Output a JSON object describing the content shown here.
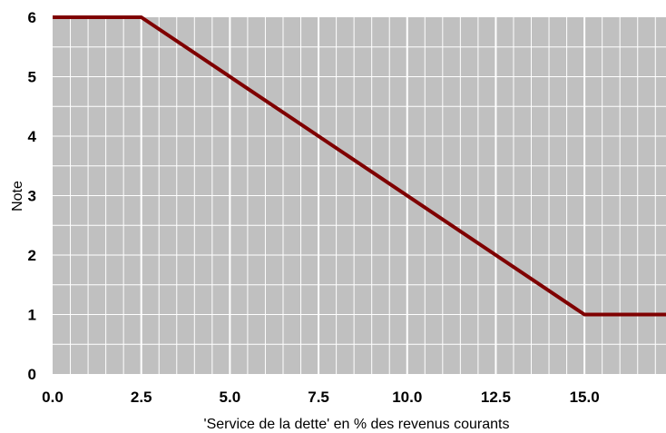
{
  "chart_data": {
    "type": "line",
    "title": "",
    "xlabel": "'Service de la dette' en % des revenus courants",
    "ylabel": "Note",
    "xlim": [
      0,
      17.3
    ],
    "ylim": [
      0,
      6
    ],
    "x_ticks": [
      0,
      2.5,
      5,
      7.5,
      10,
      12.5,
      15
    ],
    "x_tick_labels": [
      "0.0",
      "2.5",
      "5.0",
      "7.5",
      "10.0",
      "12.5",
      "15.0"
    ],
    "y_ticks": [
      0,
      1,
      2,
      3,
      4,
      5,
      6
    ],
    "y_tick_labels": [
      "0",
      "1",
      "2",
      "3",
      "4",
      "5",
      "6"
    ],
    "grid": true,
    "plot_background": "#c0c0c0",
    "grid_color": "#ffffff",
    "series": [
      {
        "color": "#7f0000",
        "points": [
          {
            "x": 0,
            "y": 6
          },
          {
            "x": 2.5,
            "y": 6
          },
          {
            "x": 15,
            "y": 1
          },
          {
            "x": 17.3,
            "y": 1
          }
        ]
      }
    ]
  }
}
